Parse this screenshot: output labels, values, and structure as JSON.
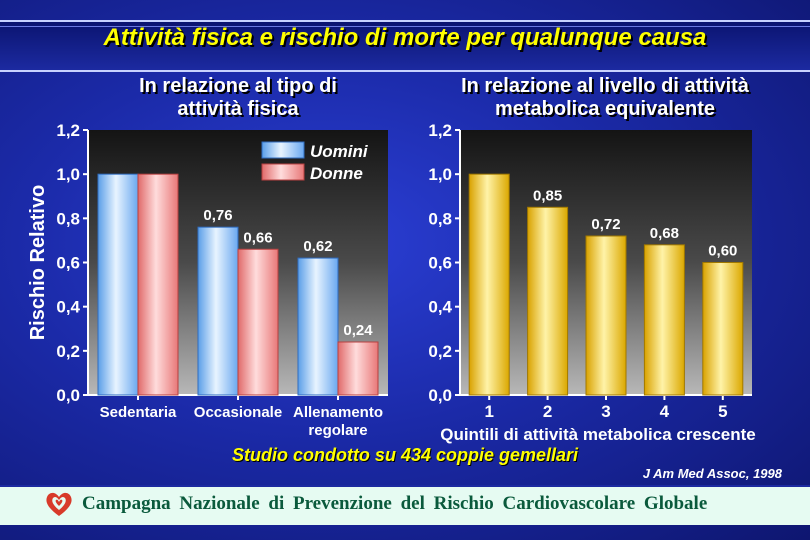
{
  "title": "Attività fisica e rischio di morte per qualunque causa",
  "left_subtitle": [
    "In relazione al tipo di",
    "attività fisica"
  ],
  "right_subtitle": [
    "In relazione al livello di attività",
    "metabolica equivalente"
  ],
  "ylabel": "Rischio Relativo",
  "study_note": "Studio condotto su 434 coppie gemellari",
  "citation": "J Am Med Assoc, 1998",
  "footer": "Campagna Nazionale di Prevenzione del Rischio Cardiovascolare Globale",
  "chart_data": [
    {
      "type": "bar",
      "categories": [
        "Sedentaria",
        "Occasionale",
        "Allenamento\nregolare"
      ],
      "series": [
        {
          "name": "Uomini",
          "values": [
            1.0,
            0.76,
            0.62
          ],
          "labels": [
            "",
            "0,76",
            "0,62"
          ],
          "color": "#9ad0ff"
        },
        {
          "name": "Donne",
          "values": [
            1.0,
            0.66,
            0.24
          ],
          "labels": [
            "",
            "0,66",
            "0,24"
          ],
          "color": "#f28a8a"
        }
      ],
      "yticks": [
        "0,0",
        "0,2",
        "0,4",
        "0,6",
        "0,8",
        "1,0",
        "1,2"
      ],
      "ylim": [
        0,
        1.2
      ],
      "ylabel": "Rischio Relativo",
      "legend": "top-right"
    },
    {
      "type": "bar",
      "categories": [
        "1",
        "2",
        "3",
        "4",
        "5"
      ],
      "series": [
        {
          "name": "",
          "values": [
            1.0,
            0.85,
            0.72,
            0.68,
            0.6
          ],
          "labels": [
            "",
            "0,85",
            "0,72",
            "0,68",
            "0,60"
          ],
          "color": "#f0c020"
        }
      ],
      "yticks": [
        "0,0",
        "0,2",
        "0,4",
        "0,6",
        "0,8",
        "1,0",
        "1,2"
      ],
      "ylim": [
        0,
        1.2
      ],
      "xlabel": "Quintili di attività metabolica crescente"
    }
  ]
}
